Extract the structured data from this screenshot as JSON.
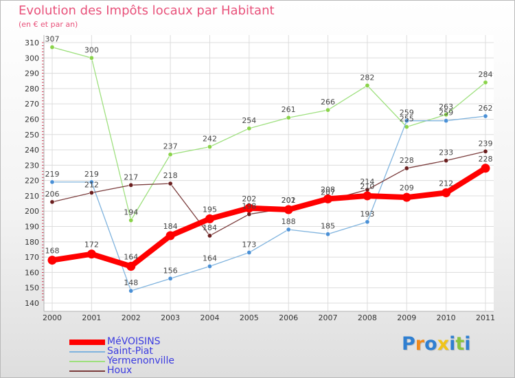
{
  "chart_data": {
    "type": "line",
    "title": "Evolution des Impôts locaux par Habitant",
    "subtitle": "(en € et par an)",
    "xlabel": "",
    "ylabel": "",
    "ylim": [
      140,
      310
    ],
    "y_ticks": [
      140,
      150,
      160,
      170,
      180,
      190,
      200,
      210,
      220,
      230,
      240,
      250,
      260,
      270,
      280,
      290,
      300,
      310
    ],
    "x": [
      "2000",
      "2001",
      "2002",
      "2003",
      "2004",
      "2005",
      "2006",
      "2007",
      "2008",
      "2009",
      "2010",
      "2011"
    ],
    "grid": true,
    "legend_position": "bottom-left",
    "series": [
      {
        "name": "Yermenonville",
        "color": "#9ee07e",
        "marker": "#8ad34a",
        "values": [
          307,
          300,
          194,
          237,
          242,
          254,
          261,
          266,
          282,
          255,
          263,
          284
        ]
      },
      {
        "name": "Saint-Piat",
        "color": "#7fb3de",
        "marker": "#4a90d6",
        "values": [
          219,
          219,
          148,
          156,
          164,
          173,
          188,
          185,
          193,
          259,
          259,
          262
        ]
      },
      {
        "name": "Houx",
        "color": "#7a3b3b",
        "marker": "#6b1f1f",
        "values": [
          206,
          212,
          217,
          218,
          184,
          198,
          202,
          207,
          214,
          228,
          233,
          239
        ]
      },
      {
        "name": "MéVOISINS",
        "color": "#ff0000",
        "marker": "#ff0000",
        "values": [
          168,
          172,
          164,
          184,
          195,
          202,
          201,
          208,
          210,
          209,
          212,
          228
        ]
      }
    ]
  },
  "legend": {
    "items": [
      "MéVOISINS",
      "Saint-Piat",
      "Yermenonville",
      "Houx"
    ]
  },
  "brand": {
    "letters": [
      "P",
      "r",
      "o",
      "x",
      "i",
      "t",
      "i"
    ],
    "colors": [
      "#2f7fd1",
      "#f08a1c",
      "#2f7fd1",
      "#f0c419",
      "#2f7fd1",
      "#8ac43f",
      "#2f7fd1"
    ]
  }
}
